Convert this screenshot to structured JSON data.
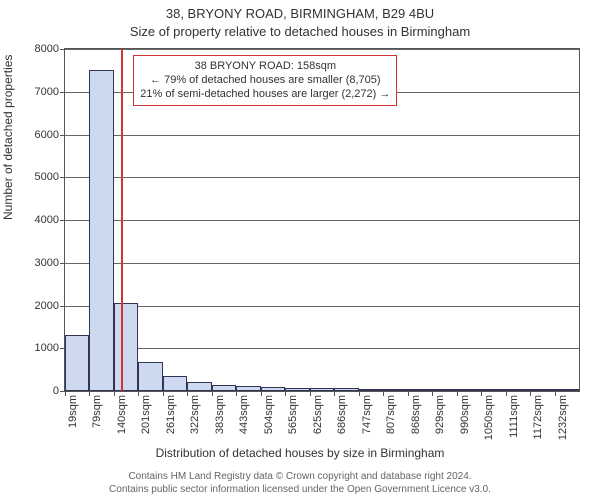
{
  "title": {
    "line1": "38, BRYONY ROAD, BIRMINGHAM, B29 4BU",
    "line2": "Size of property relative to detached houses in Birmingham"
  },
  "chart": {
    "type": "histogram",
    "ylabel": "Number of detached properties",
    "xlabel": "Distribution of detached houses by size in Birmingham",
    "ylim": [
      0,
      8000
    ],
    "ytick_step": 1000,
    "background_color": "#ffffff",
    "grid_color": "#555555",
    "bar_fill": "#cdd9ef",
    "bar_edge": "#333355",
    "marker_color": "#d23333",
    "xtick_labels": [
      "19sqm",
      "79sqm",
      "140sqm",
      "201sqm",
      "261sqm",
      "322sqm",
      "383sqm",
      "443sqm",
      "504sqm",
      "565sqm",
      "625sqm",
      "686sqm",
      "747sqm",
      "807sqm",
      "868sqm",
      "929sqm",
      "990sqm",
      "1050sqm",
      "1111sqm",
      "1172sqm",
      "1232sqm"
    ],
    "values": [
      1300,
      7500,
      2050,
      680,
      350,
      220,
      150,
      120,
      90,
      80,
      60,
      60,
      40,
      40,
      30,
      30,
      20,
      20,
      20,
      15,
      10
    ],
    "marker_bin_index": 2,
    "marker_fraction_in_bin": 0.3
  },
  "annotation": {
    "line1": "38 BRYONY ROAD: 158sqm",
    "line2": "← 79% of detached houses are smaller (8,705)",
    "line3": "21% of semi-detached houses are larger (2,272) →"
  },
  "attribution": {
    "line1": "Contains HM Land Registry data © Crown copyright and database right 2024.",
    "line2": "Contains public sector information licensed under the Open Government Licence v3.0."
  }
}
